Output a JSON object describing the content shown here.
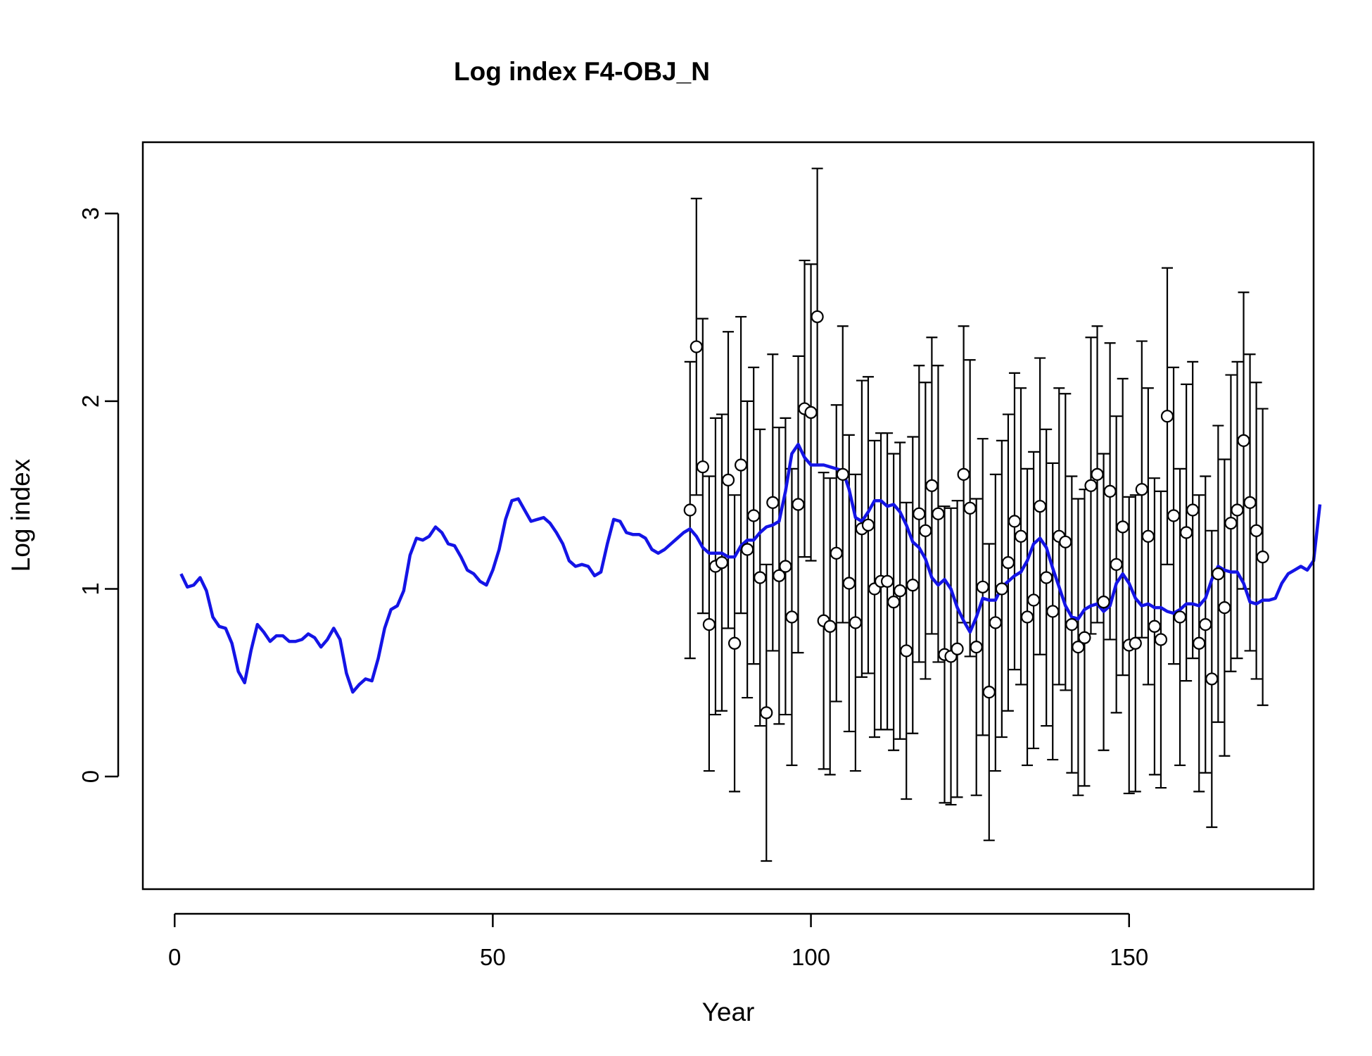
{
  "chart_data": {
    "type": "line",
    "title": "Log index F4-OBJ_N",
    "xlabel": "Year",
    "ylabel": "Log index",
    "xlim": [
      -5,
      179
    ],
    "ylim": [
      -0.6,
      3.38
    ],
    "x_ticks": [
      0,
      50,
      100,
      150
    ],
    "y_ticks": [
      0,
      1,
      2,
      3
    ],
    "x_tick_labels": [
      "0",
      "50",
      "100",
      "150"
    ],
    "y_tick_labels": [
      "0",
      "1",
      "2",
      "3"
    ],
    "grid": false,
    "colors": {
      "line": "#1414e6",
      "points": "#000000",
      "point_fill": "#ffffff"
    },
    "series": [
      {
        "type": "line",
        "x_start": 1,
        "x_step": 1,
        "values": [
          1.08,
          1.01,
          1.02,
          1.06,
          0.99,
          0.85,
          0.8,
          0.79,
          0.71,
          0.56,
          0.5,
          0.67,
          0.81,
          0.77,
          0.72,
          0.75,
          0.75,
          0.72,
          0.72,
          0.73,
          0.76,
          0.74,
          0.69,
          0.73,
          0.79,
          0.73,
          0.55,
          0.45,
          0.49,
          0.52,
          0.51,
          0.63,
          0.79,
          0.89,
          0.91,
          0.99,
          1.18,
          1.27,
          1.26,
          1.28,
          1.33,
          1.3,
          1.24,
          1.23,
          1.17,
          1.1,
          1.08,
          1.04,
          1.02,
          1.1,
          1.21,
          1.37,
          1.47,
          1.48,
          1.42,
          1.36,
          1.37,
          1.38,
          1.35,
          1.3,
          1.24,
          1.15,
          1.12,
          1.13,
          1.12,
          1.07,
          1.09,
          1.24,
          1.37,
          1.36,
          1.3,
          1.29,
          1.29,
          1.27,
          1.21,
          1.19,
          1.21,
          1.24,
          1.27,
          1.3,
          1.32,
          1.28,
          1.22,
          1.19,
          1.19,
          1.19,
          1.17,
          1.17,
          1.23,
          1.26,
          1.26,
          1.3,
          1.33,
          1.34,
          1.36,
          1.52,
          1.72,
          1.77,
          1.7,
          1.66,
          1.66,
          1.66,
          1.65,
          1.64,
          1.63,
          1.53,
          1.38,
          1.36,
          1.41,
          1.47,
          1.47,
          1.44,
          1.45,
          1.41,
          1.34,
          1.25,
          1.22,
          1.16,
          1.06,
          1.02,
          1.05,
          1.0,
          0.9,
          0.83,
          0.77,
          0.85,
          0.95,
          0.94,
          0.94,
          1.01,
          1.04,
          1.07,
          1.09,
          1.15,
          1.24,
          1.27,
          1.22,
          1.11,
          1.01,
          0.91,
          0.85,
          0.84,
          0.89,
          0.91,
          0.92,
          0.88,
          0.91,
          1.03,
          1.08,
          1.03,
          0.95,
          0.91,
          0.92,
          0.9,
          0.9,
          0.88,
          0.87,
          0.89,
          0.92,
          0.92,
          0.91,
          0.95,
          1.05,
          1.12,
          1.1,
          1.09,
          1.09,
          1.03,
          0.93,
          0.92,
          0.94,
          0.94,
          0.95,
          1.03,
          1.08,
          1.1,
          1.12,
          1.1,
          1.15,
          1.45
        ]
      },
      {
        "type": "points_with_error_bars",
        "x_start": 81,
        "x_step": 1,
        "values": [
          1.42,
          2.29,
          1.65,
          0.81,
          1.12,
          1.14,
          1.58,
          0.71,
          1.66,
          1.21,
          1.39,
          1.06,
          0.34,
          1.46,
          1.07,
          1.12,
          0.85,
          1.45,
          1.96,
          1.94,
          2.45,
          0.83,
          0.8,
          1.19,
          1.61,
          1.03,
          0.82,
          1.32,
          1.34,
          1.0,
          1.04,
          1.04,
          0.93,
          0.99,
          0.67,
          1.02,
          1.4,
          1.31,
          1.55,
          1.4,
          0.65,
          0.64,
          0.68,
          1.61,
          1.43,
          0.69,
          1.01,
          0.45,
          0.82,
          1.0,
          1.14,
          1.36,
          1.28,
          0.85,
          0.94,
          1.44,
          1.06,
          0.88,
          1.28,
          1.25,
          0.81,
          0.69,
          0.74,
          1.55,
          1.61,
          0.93,
          1.52,
          1.13,
          1.33,
          0.7,
          0.71,
          1.53,
          1.28,
          0.8,
          0.73,
          1.92,
          1.39,
          0.85,
          1.3,
          1.42,
          0.71,
          0.81,
          0.52,
          1.08,
          0.9,
          1.35,
          1.42,
          1.79,
          1.46,
          1.31,
          1.17
        ],
        "lower": [
          0.63,
          1.5,
          0.87,
          0.03,
          0.33,
          0.35,
          0.79,
          -0.08,
          0.87,
          0.42,
          0.6,
          0.27,
          -0.45,
          0.67,
          0.28,
          0.33,
          0.06,
          0.66,
          1.17,
          1.15,
          1.66,
          0.04,
          0.01,
          0.4,
          0.82,
          0.24,
          0.03,
          0.53,
          0.55,
          0.21,
          0.25,
          0.25,
          0.14,
          0.2,
          -0.12,
          0.23,
          0.61,
          0.52,
          0.76,
          0.61,
          -0.14,
          -0.15,
          -0.11,
          0.82,
          0.64,
          -0.1,
          0.22,
          -0.34,
          0.03,
          0.21,
          0.35,
          0.57,
          0.49,
          0.06,
          0.15,
          0.65,
          0.27,
          0.09,
          0.49,
          0.46,
          0.02,
          -0.1,
          -0.05,
          0.76,
          0.82,
          0.14,
          0.73,
          0.34,
          0.54,
          -0.09,
          -0.08,
          0.74,
          0.49,
          0.01,
          -0.06,
          1.13,
          0.6,
          0.06,
          0.51,
          0.63,
          -0.08,
          0.02,
          -0.27,
          0.29,
          0.11,
          0.56,
          0.63,
          1.0,
          0.67,
          0.52,
          0.38
        ],
        "upper": [
          2.21,
          3.08,
          2.44,
          1.6,
          1.91,
          1.93,
          2.37,
          1.5,
          2.45,
          2.0,
          2.18,
          1.85,
          1.13,
          2.25,
          1.86,
          1.91,
          1.64,
          2.24,
          2.75,
          2.73,
          3.24,
          1.62,
          1.59,
          1.98,
          2.4,
          1.82,
          1.61,
          2.11,
          2.13,
          1.79,
          1.83,
          1.83,
          1.72,
          1.78,
          1.46,
          1.81,
          2.19,
          2.1,
          2.34,
          2.19,
          1.44,
          1.43,
          1.47,
          2.4,
          2.22,
          1.48,
          1.8,
          1.24,
          1.61,
          1.79,
          1.93,
          2.15,
          2.07,
          1.64,
          1.73,
          2.23,
          1.85,
          1.67,
          2.07,
          2.04,
          1.6,
          1.48,
          1.53,
          2.34,
          2.4,
          1.72,
          2.31,
          1.92,
          2.12,
          1.49,
          1.5,
          2.32,
          2.07,
          1.59,
          1.52,
          2.71,
          2.18,
          1.64,
          2.09,
          2.21,
          1.5,
          1.6,
          1.31,
          1.87,
          1.69,
          2.14,
          2.21,
          2.58,
          2.25,
          2.1,
          1.96
        ]
      }
    ]
  }
}
